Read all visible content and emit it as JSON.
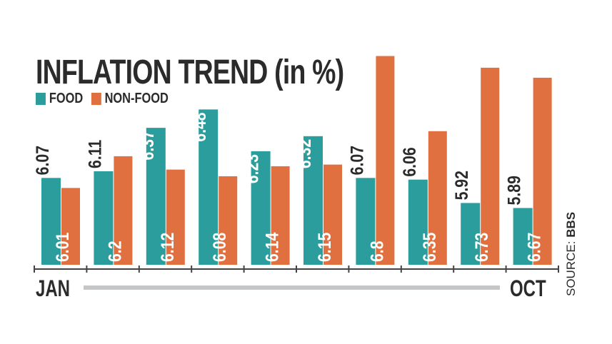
{
  "chart_data": {
    "type": "bar",
    "title": "INFLATION TREND (in %)",
    "categories": [
      "JAN",
      "",
      "",
      "",
      "",
      "",
      "",
      "",
      "",
      "OCT"
    ],
    "series": [
      {
        "name": "FOOD",
        "color": "#2a9d9c",
        "values": [
          6.07,
          6.11,
          6.37,
          6.48,
          6.23,
          6.32,
          6.07,
          6.06,
          5.92,
          5.89
        ]
      },
      {
        "name": "NON-FOOD",
        "color": "#e07040",
        "values": [
          6.01,
          6.2,
          6.12,
          6.08,
          6.14,
          6.15,
          6.8,
          6.35,
          6.73,
          6.67
        ]
      }
    ],
    "axis_labels": {
      "start": "JAN",
      "end": "OCT"
    },
    "source": {
      "prefix": "SOURCE:",
      "name": "BBS"
    },
    "grid": false,
    "legend": "top-left"
  }
}
